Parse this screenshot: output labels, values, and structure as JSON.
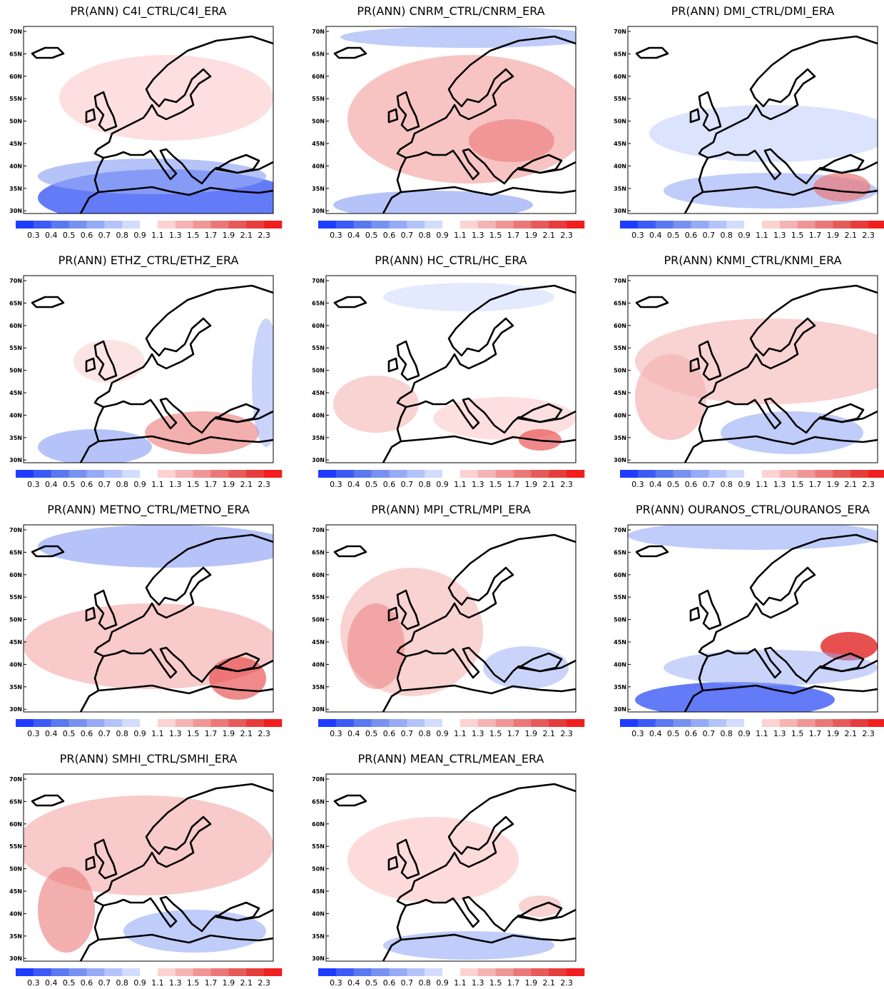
{
  "panels": [
    {
      "title": "PR(ANN) C4I_CTRL/C4I_ERA"
    },
    {
      "title": "PR(ANN) CNRM_CTRL/CNRM_ERA"
    },
    {
      "title": "PR(ANN) DMI_CTRL/DMI_ERA"
    },
    {
      "title": "PR(ANN) ETHZ_CTRL/ETHZ_ERA"
    },
    {
      "title": "PR(ANN) HC_CTRL/HC_ERA"
    },
    {
      "title": "PR(ANN) KNMI_CTRL/KNMI_ERA"
    },
    {
      "title": "PR(ANN) METNO_CTRL/METNO_ERA"
    },
    {
      "title": "PR(ANN) MPI_CTRL/MPI_ERA"
    },
    {
      "title": "PR(ANN) OURANOS_CTRL/OURANOS_ERA"
    },
    {
      "title": "PR(ANN) SMHI_CTRL/SMHI_ERA"
    },
    {
      "title": "PR(ANN) MEAN_CTRL/MEAN_ERA"
    }
  ],
  "latitude_labels": [
    "70N",
    "65N",
    "60N",
    "55N",
    "50N",
    "45N",
    "40N",
    "35N",
    "30N"
  ],
  "colorbar_labels": [
    "0.3",
    "0.4",
    "0.5",
    "0.6",
    "0.7",
    "0.8",
    "0.9",
    "1.1",
    "1.3",
    "1.5",
    "1.7",
    "1.9",
    "2.1",
    "2.3"
  ]
}
